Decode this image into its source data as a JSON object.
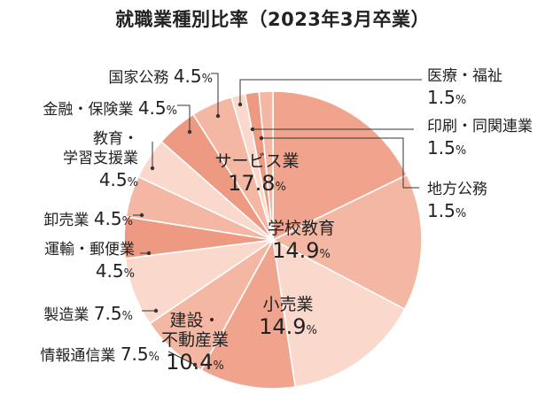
{
  "title": "就職業種別比率（2023年3月卒業）",
  "chart_data": {
    "type": "pie",
    "title": "就職業種別比率（2023年3月卒業）",
    "unit": "%",
    "slices": [
      {
        "name": "サービス業",
        "value": 17.8,
        "value_label": "17.8",
        "color": "#f0a48e"
      },
      {
        "name": "学校教育",
        "value": 14.9,
        "value_label": "14.9",
        "color": "#f4b7a3"
      },
      {
        "name": "小売業",
        "value": 14.9,
        "value_label": "14.9",
        "color": "#fbd8cc"
      },
      {
        "name": "建設・\n不動産業",
        "value": 10.4,
        "value_label": "10.4",
        "color": "#f0a48e"
      },
      {
        "name": "情報通信業",
        "value": 7.5,
        "value_label": "7.5",
        "color": "#f4b7a3"
      },
      {
        "name": "製造業",
        "value": 7.5,
        "value_label": "7.5",
        "color": "#fbd8cc"
      },
      {
        "name": "運輸・郵便業\n",
        "value": 4.5,
        "value_label": "4.5",
        "color": "#ee9a82"
      },
      {
        "name": "卸売業",
        "value": 4.5,
        "value_label": "4.5",
        "color": "#f4b7a3"
      },
      {
        "name": "教育・\n学習支援業\n",
        "value": 4.5,
        "value_label": "4.5",
        "color": "#fbd8cc"
      },
      {
        "name": "金融・保険業",
        "value": 4.5,
        "value_label": "4.5",
        "color": "#ee9a82"
      },
      {
        "name": "国家公務",
        "value": 4.5,
        "value_label": "4.5",
        "color": "#f4b7a3"
      },
      {
        "name": "医療・福祉\n",
        "value": 1.5,
        "value_label": "1.5",
        "color": "#fbd8cc"
      },
      {
        "name": "印刷・同関連業\n",
        "value": 1.5,
        "value_label": "1.5",
        "color": "#ee9a82"
      },
      {
        "name": "地方公務\n",
        "value": 1.5,
        "value_label": "1.5",
        "color": "#f4b7a3"
      }
    ]
  }
}
